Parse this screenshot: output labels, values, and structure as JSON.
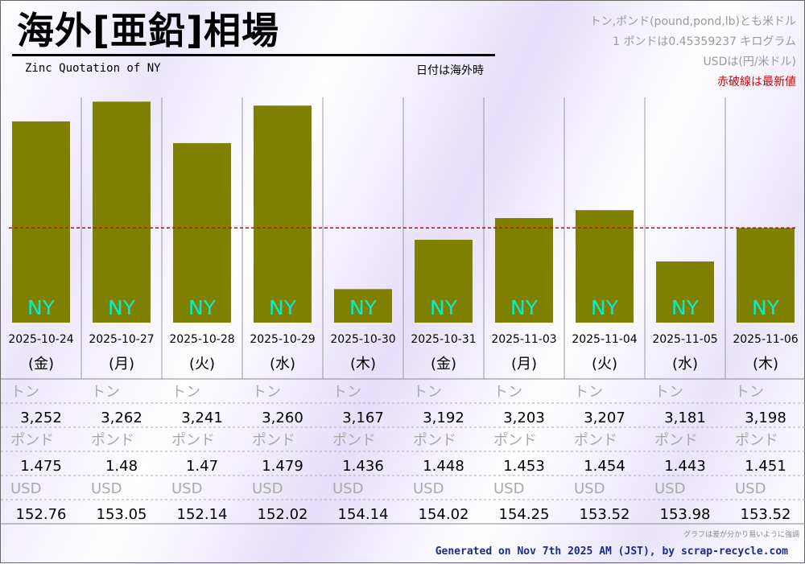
{
  "header": {
    "title": "海外[亜鉛]相場",
    "subtitle": "Zinc Quotation of NY",
    "date_note": "日付は海外時"
  },
  "notes": {
    "line1": "トン,ポンド(pound,pond,lb)とも米ドル",
    "line2": "1 ポンドは0.45359237 キログラム",
    "line3": "USDは(円/米ドル)",
    "line4": "赤破線は最新値"
  },
  "colors": {
    "bar": "#808000",
    "bar_label": "#00f0d0",
    "latest_line": "#d40000"
  },
  "chart_data": {
    "type": "bar",
    "market_label": "NY",
    "categories": [
      "2025-10-24",
      "2025-10-27",
      "2025-10-28",
      "2025-10-29",
      "2025-10-30",
      "2025-10-31",
      "2025-11-03",
      "2025-11-04",
      "2025-11-05",
      "2025-11-06"
    ],
    "weekdays": [
      "(金)",
      "(月)",
      "(火)",
      "(水)",
      "(木)",
      "(金)",
      "(月)",
      "(火)",
      "(水)",
      "(木)"
    ],
    "values": [
      3252,
      3262,
      3241,
      3260,
      3167,
      3192,
      3203,
      3207,
      3181,
      3198
    ],
    "latest_value": 3198,
    "ylim": [
      3150,
      3265
    ]
  },
  "table": {
    "rows": [
      {
        "label": "トン",
        "values": [
          "3,252",
          "3,262",
          "3,241",
          "3,260",
          "3,167",
          "3,192",
          "3,203",
          "3,207",
          "3,181",
          "3,198"
        ]
      },
      {
        "label": "ポンド",
        "values": [
          "1.475",
          "1.48",
          "1.47",
          "1.479",
          "1.436",
          "1.448",
          "1.453",
          "1.454",
          "1.443",
          "1.451"
        ]
      },
      {
        "label": "USD",
        "values": [
          "152.76",
          "153.05",
          "152.14",
          "152.02",
          "154.14",
          "154.02",
          "154.25",
          "153.52",
          "153.98",
          "153.52"
        ]
      }
    ]
  },
  "footnote": "グラフは差が分かり易いように強調",
  "footer": "Generated on Nov 7th 2025 AM (JST), by scrap-recycle.com"
}
